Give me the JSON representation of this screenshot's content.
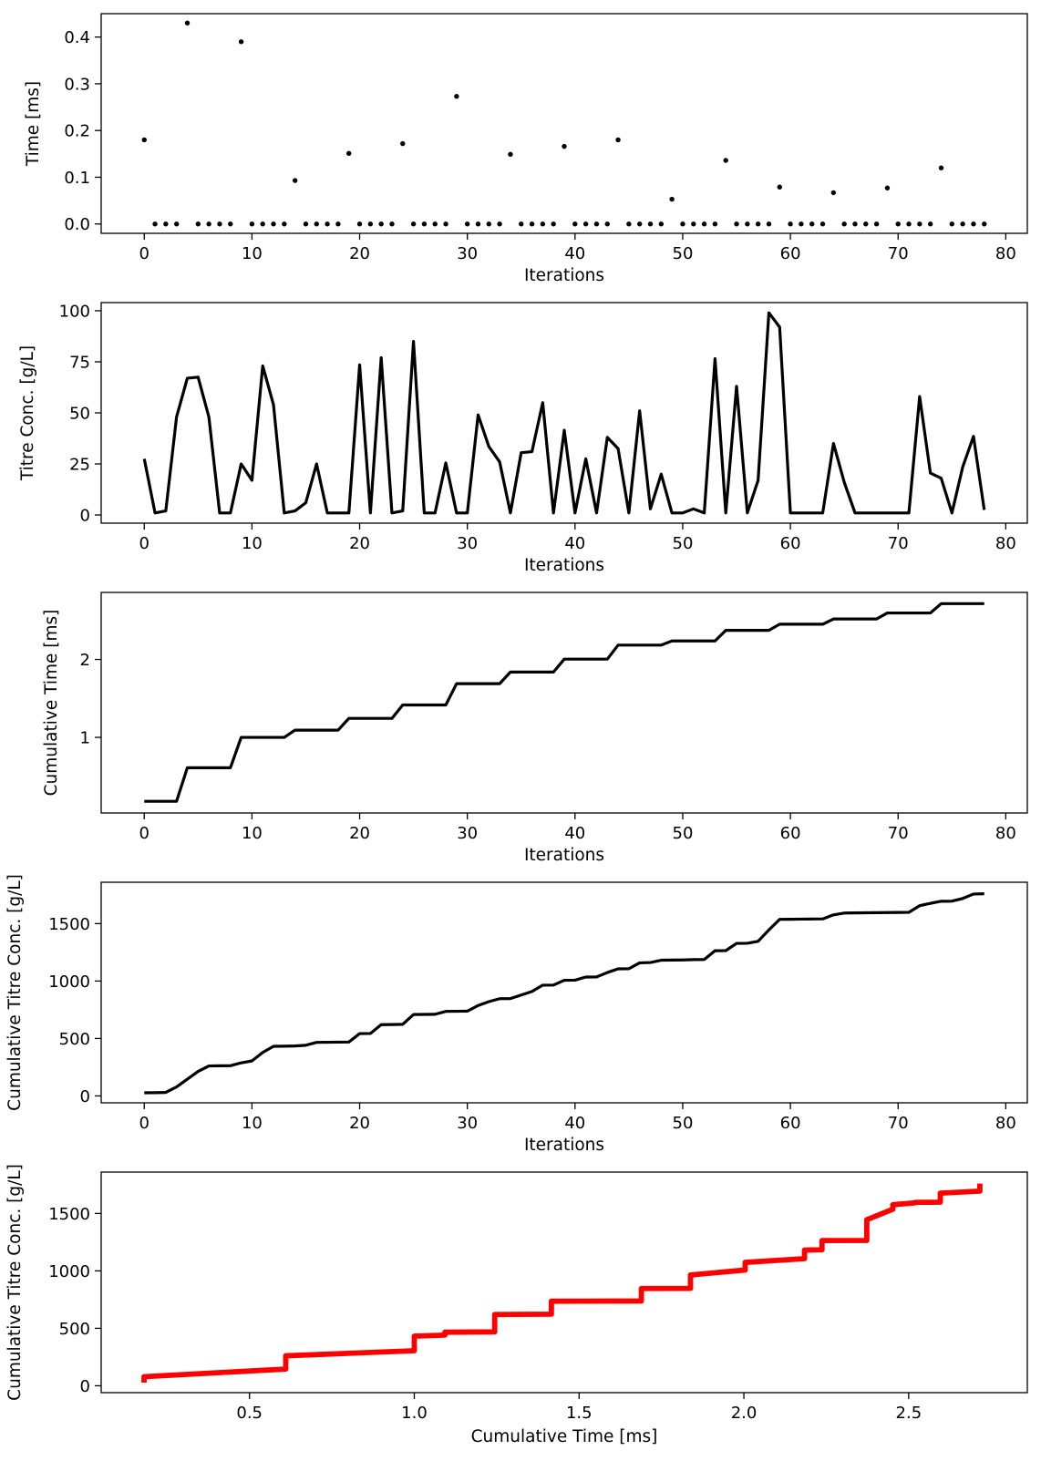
{
  "chart_data": [
    {
      "type": "scatter",
      "title": "",
      "xlabel": "Iterations",
      "ylabel": "Time [ms]",
      "xlim": [
        -4,
        82
      ],
      "ylim": [
        -0.02,
        0.45
      ],
      "xticks": [
        0,
        10,
        20,
        30,
        40,
        50,
        60,
        70,
        80
      ],
      "yticks": [
        0.0,
        0.1,
        0.2,
        0.3,
        0.4
      ],
      "ytick_labels": [
        "0.0",
        "0.1",
        "0.2",
        "0.3",
        "0.4"
      ],
      "grid": false,
      "color": "#000000",
      "series": [
        {
          "x": [
            0,
            1,
            2,
            3,
            4,
            5,
            6,
            7,
            8,
            9,
            10,
            11,
            12,
            13,
            14,
            15,
            16,
            17,
            18,
            19,
            20,
            21,
            22,
            23,
            24,
            25,
            26,
            27,
            28,
            29,
            30,
            31,
            32,
            33,
            34,
            35,
            36,
            37,
            38,
            39,
            40,
            41,
            42,
            43,
            44,
            45,
            46,
            47,
            48,
            49,
            50,
            51,
            52,
            53,
            54,
            55,
            56,
            57,
            58,
            59,
            60,
            61,
            62,
            63,
            64,
            65,
            66,
            67,
            68,
            69,
            70,
            71,
            72,
            73,
            74,
            75,
            76,
            77,
            78
          ],
          "y": [
            0.18,
            0,
            0,
            0,
            0.43,
            0,
            0,
            0,
            0,
            0.39,
            0,
            0,
            0,
            0,
            0.093,
            0,
            0,
            0,
            0,
            0.151,
            0,
            0,
            0,
            0,
            0.172,
            0,
            0,
            0,
            0,
            0.273,
            0,
            0,
            0,
            0,
            0.149,
            0,
            0,
            0,
            0,
            0.166,
            0,
            0,
            0,
            0,
            0.18,
            0,
            0,
            0,
            0,
            0.053,
            0,
            0,
            0,
            0,
            0.136,
            0,
            0,
            0,
            0,
            0.079,
            0,
            0,
            0,
            0,
            0.067,
            0,
            0,
            0,
            0,
            0.077,
            0,
            0,
            0,
            0,
            0.12,
            0,
            0,
            0,
            0
          ]
        }
      ]
    },
    {
      "type": "line",
      "title": "",
      "xlabel": "Iterations",
      "ylabel": "Titre Conc. [g/L]",
      "xlim": [
        -4,
        82
      ],
      "ylim": [
        -4,
        104
      ],
      "xticks": [
        0,
        10,
        20,
        30,
        40,
        50,
        60,
        70,
        80
      ],
      "yticks": [
        0,
        25,
        50,
        75,
        100
      ],
      "ytick_labels": [
        "0",
        "25",
        "50",
        "75",
        "100"
      ],
      "grid": false,
      "color": "#000000",
      "series": [
        {
          "x": [
            0,
            1,
            2,
            3,
            4,
            5,
            6,
            7,
            8,
            9,
            10,
            11,
            12,
            13,
            14,
            15,
            16,
            17,
            18,
            19,
            20,
            21,
            22,
            23,
            24,
            25,
            26,
            27,
            28,
            29,
            30,
            31,
            32,
            33,
            34,
            35,
            36,
            37,
            38,
            39,
            40,
            41,
            42,
            43,
            44,
            45,
            46,
            47,
            48,
            49,
            50,
            51,
            52,
            53,
            54,
            55,
            56,
            57,
            58,
            59,
            60,
            61,
            62,
            63,
            64,
            65,
            66,
            67,
            68,
            69,
            70,
            71,
            72,
            73,
            74,
            75,
            76,
            77,
            78
          ],
          "y": [
            27.5,
            1,
            2,
            48,
            67,
            67.5,
            48,
            1,
            1,
            25,
            17,
            73,
            54,
            1,
            2,
            6,
            25,
            1,
            1,
            1,
            73.5,
            1,
            77,
            1,
            2,
            85,
            1,
            1,
            25.5,
            1,
            1,
            49,
            33.5,
            26,
            1,
            30.5,
            31,
            55,
            1,
            41.5,
            1,
            27.5,
            1,
            38,
            32.5,
            1,
            51,
            3,
            20,
            1,
            1,
            3,
            1,
            76.5,
            1,
            63,
            1,
            17,
            99,
            92,
            1,
            1,
            1,
            1,
            35,
            16,
            1,
            1,
            1,
            1,
            1,
            1,
            58,
            20.5,
            18,
            1,
            23.5,
            38.5,
            2.5
          ]
        }
      ]
    },
    {
      "type": "line",
      "title": "",
      "xlabel": "Iterations",
      "ylabel": "Cumulative Time [ms]",
      "xlim": [
        -4,
        82
      ],
      "ylim": [
        0.03,
        2.86
      ],
      "xticks": [
        0,
        10,
        20,
        30,
        40,
        50,
        60,
        70,
        80
      ],
      "yticks": [
        1,
        2
      ],
      "ytick_labels": [
        "1",
        "2"
      ],
      "grid": false,
      "color": "#000000",
      "series": [
        {
          "x": [
            0,
            1,
            2,
            3,
            4,
            5,
            6,
            7,
            8,
            9,
            10,
            11,
            12,
            13,
            14,
            15,
            16,
            17,
            18,
            19,
            20,
            21,
            22,
            23,
            24,
            25,
            26,
            27,
            28,
            29,
            30,
            31,
            32,
            33,
            34,
            35,
            36,
            37,
            38,
            39,
            40,
            41,
            42,
            43,
            44,
            45,
            46,
            47,
            48,
            49,
            50,
            51,
            52,
            53,
            54,
            55,
            56,
            57,
            58,
            59,
            60,
            61,
            62,
            63,
            64,
            65,
            66,
            67,
            68,
            69,
            70,
            71,
            72,
            73,
            74,
            75,
            76,
            77,
            78
          ],
          "y": [
            0.18,
            0.18,
            0.18,
            0.18,
            0.61,
            0.61,
            0.61,
            0.61,
            0.61,
            1.0,
            1.0,
            1.0,
            1.0,
            1.0,
            1.093,
            1.093,
            1.093,
            1.093,
            1.093,
            1.244,
            1.244,
            1.244,
            1.244,
            1.244,
            1.416,
            1.416,
            1.416,
            1.416,
            1.416,
            1.689,
            1.689,
            1.689,
            1.689,
            1.689,
            1.838,
            1.838,
            1.838,
            1.838,
            1.838,
            2.004,
            2.004,
            2.004,
            2.004,
            2.004,
            2.184,
            2.184,
            2.184,
            2.184,
            2.184,
            2.237,
            2.237,
            2.237,
            2.237,
            2.237,
            2.373,
            2.373,
            2.373,
            2.373,
            2.373,
            2.452,
            2.452,
            2.452,
            2.452,
            2.452,
            2.519,
            2.519,
            2.519,
            2.519,
            2.519,
            2.596,
            2.596,
            2.596,
            2.596,
            2.596,
            2.716,
            2.716,
            2.716,
            2.716,
            2.716
          ]
        }
      ]
    },
    {
      "type": "line",
      "title": "",
      "xlabel": "Iterations",
      "ylabel": "Cumulative Titre Conc. [g/L]",
      "xlim": [
        -4,
        82
      ],
      "ylim": [
        -60,
        1860
      ],
      "xticks": [
        0,
        10,
        20,
        30,
        40,
        50,
        60,
        70,
        80
      ],
      "yticks": [
        0,
        500,
        1000,
        1500
      ],
      "ytick_labels": [
        "0",
        "500",
        "1000",
        "1500"
      ],
      "grid": false,
      "color": "#000000",
      "series": [
        {
          "x": [
            0,
            1,
            2,
            3,
            4,
            5,
            6,
            7,
            8,
            9,
            10,
            11,
            12,
            13,
            14,
            15,
            16,
            17,
            18,
            19,
            20,
            21,
            22,
            23,
            24,
            25,
            26,
            27,
            28,
            29,
            30,
            31,
            32,
            33,
            34,
            35,
            36,
            37,
            38,
            39,
            40,
            41,
            42,
            43,
            44,
            45,
            46,
            47,
            48,
            49,
            50,
            51,
            52,
            53,
            54,
            55,
            56,
            57,
            58,
            59,
            60,
            61,
            62,
            63,
            64,
            65,
            66,
            67,
            68,
            69,
            70,
            71,
            72,
            73,
            74,
            75,
            76,
            77,
            78
          ],
          "y": [
            27.5,
            28.5,
            30.5,
            78.5,
            145.5,
            213,
            261,
            262,
            263,
            288,
            305,
            378,
            432,
            433,
            435,
            441,
            466,
            467,
            468,
            469,
            542.5,
            543.5,
            620.5,
            621.5,
            623.5,
            708.5,
            709.5,
            710.5,
            736,
            737,
            738,
            787,
            820.5,
            846.5,
            847.5,
            878,
            909,
            964,
            965,
            1006.5,
            1007.5,
            1035,
            1036,
            1074,
            1106.5,
            1107.5,
            1158.5,
            1161.5,
            1181.5,
            1182.5,
            1183.5,
            1186.5,
            1187.5,
            1264,
            1265,
            1328,
            1329,
            1346,
            1445,
            1537,
            1538,
            1539,
            1540,
            1541,
            1576,
            1592,
            1593,
            1594,
            1595,
            1596,
            1597,
            1598,
            1656,
            1676.5,
            1694.5,
            1695.5,
            1719,
            1757.5,
            1760
          ]
        }
      ]
    },
    {
      "type": "line",
      "title": "",
      "xlabel": "Cumulative Time [ms]",
      "ylabel": "Cumulative Titre Conc. [g/L]",
      "xlim": [
        0.05,
        2.86
      ],
      "ylim": [
        -60,
        1860
      ],
      "xticks": [
        0.5,
        1.0,
        1.5,
        2.0,
        2.5
      ],
      "xtick_labels": [
        "0.5",
        "1.0",
        "1.5",
        "2.0",
        "2.5"
      ],
      "yticks": [
        0,
        500,
        1000,
        1500
      ],
      "ytick_labels": [
        "0",
        "500",
        "1000",
        "1500"
      ],
      "grid": false,
      "color": "#ff0000",
      "series": [
        {
          "x": [
            0.18,
            0.18,
            0.61,
            0.61,
            1.0,
            1.0,
            1.093,
            1.093,
            1.244,
            1.244,
            1.416,
            1.416,
            1.689,
            1.689,
            1.838,
            1.838,
            2.004,
            2.004,
            2.184,
            2.184,
            2.237,
            2.237,
            2.373,
            2.373,
            2.452,
            2.452,
            2.519,
            2.519,
            2.596,
            2.596,
            2.716,
            2.716
          ],
          "y": [
            27.5,
            78.5,
            145.5,
            261,
            305,
            432,
            441,
            466,
            469,
            620.5,
            623.5,
            736,
            738,
            846.5,
            847.5,
            964,
            1007.5,
            1074,
            1106.5,
            1181.5,
            1183.5,
            1264,
            1265,
            1445,
            1537,
            1576,
            1592,
            1596,
            1598,
            1676.5,
            1694.5,
            1760
          ]
        }
      ]
    }
  ]
}
